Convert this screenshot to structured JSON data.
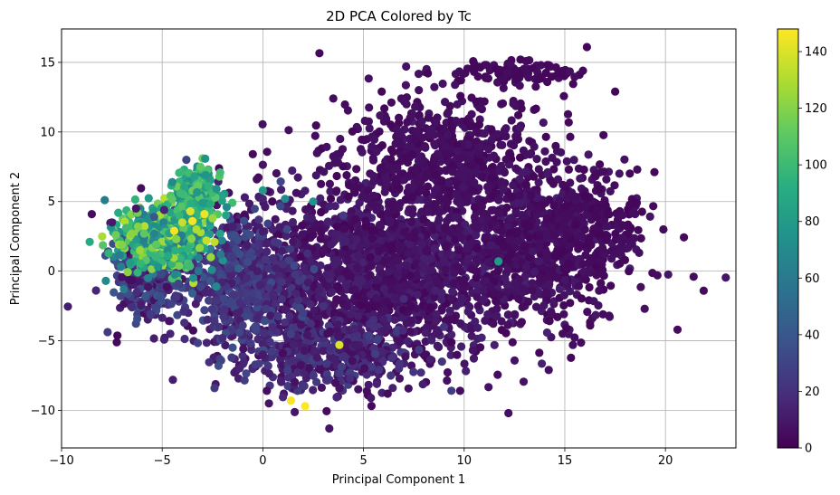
{
  "chart_data": {
    "type": "scatter",
    "title": "2D PCA Colored by Tc",
    "xlabel": "Principal Component 1",
    "ylabel": "Principal Component 2",
    "xlim": [
      -10,
      23.5
    ],
    "ylim": [
      -12.7,
      17.4
    ],
    "xticks": [
      -10,
      -5,
      0,
      5,
      10,
      15,
      20
    ],
    "xtick_labels": [
      "−10",
      "−5",
      "0",
      "5",
      "10",
      "15",
      "20"
    ],
    "yticks": [
      -10,
      -5,
      0,
      5,
      10,
      15
    ],
    "ytick_labels": [
      "−10",
      "−5",
      "0",
      "5",
      "10",
      "15"
    ],
    "grid": true,
    "colormap": "viridis",
    "colorbar": {
      "min": 0,
      "max": 148,
      "ticks": [
        0,
        20,
        40,
        60,
        80,
        100,
        120,
        140
      ],
      "tick_labels": [
        "0",
        "20",
        "40",
        "60",
        "80",
        "100",
        "120",
        "140"
      ]
    },
    "points": [
      {
        "x": -8.5,
        "y": 4.1,
        "tc": 5
      },
      {
        "x": -8.6,
        "y": 2.1,
        "tc": 90
      },
      {
        "x": -7.8,
        "y": -0.7,
        "tc": 70
      },
      {
        "x": -7.5,
        "y": 3.5,
        "tc": 10
      },
      {
        "x": -7.3,
        "y": 2.6,
        "tc": 115
      },
      {
        "x": -7.0,
        "y": 1.9,
        "tc": 120
      },
      {
        "x": -6.8,
        "y": 3.1,
        "tc": 100
      },
      {
        "x": -6.6,
        "y": 0.6,
        "tc": 80
      },
      {
        "x": -6.9,
        "y": -1.3,
        "tc": 60
      },
      {
        "x": -6.5,
        "y": -2.6,
        "tc": 20
      },
      {
        "x": -6.3,
        "y": 4.5,
        "tc": 8
      },
      {
        "x": -6.1,
        "y": 1.5,
        "tc": 125
      },
      {
        "x": -5.9,
        "y": 2.7,
        "tc": 110
      },
      {
        "x": -5.7,
        "y": -0.5,
        "tc": 65
      },
      {
        "x": -5.6,
        "y": -3.1,
        "tc": 25
      },
      {
        "x": -5.4,
        "y": 3.9,
        "tc": 40
      },
      {
        "x": -5.2,
        "y": 0.3,
        "tc": 75
      },
      {
        "x": -5.1,
        "y": -1.8,
        "tc": 35
      },
      {
        "x": -4.9,
        "y": 4.4,
        "tc": 15
      },
      {
        "x": -4.7,
        "y": 1.1,
        "tc": 90
      },
      {
        "x": -4.6,
        "y": -4.5,
        "tc": 15
      },
      {
        "x": -4.5,
        "y": 6.4,
        "tc": 70
      },
      {
        "x": -4.3,
        "y": 2.3,
        "tc": 120
      },
      {
        "x": -4.2,
        "y": -0.9,
        "tc": 30
      },
      {
        "x": -4.1,
        "y": 5.6,
        "tc": 100
      },
      {
        "x": -4.0,
        "y": 3.5,
        "tc": 135
      },
      {
        "x": -3.9,
        "y": -3.7,
        "tc": 20
      },
      {
        "x": -3.8,
        "y": 8.0,
        "tc": 30
      },
      {
        "x": -3.7,
        "y": 1.6,
        "tc": 95
      },
      {
        "x": -3.6,
        "y": 4.3,
        "tc": 140
      },
      {
        "x": -3.5,
        "y": -1.6,
        "tc": 45
      },
      {
        "x": -3.4,
        "y": 6.8,
        "tc": 85
      },
      {
        "x": -3.3,
        "y": 3.0,
        "tc": 130
      },
      {
        "x": -3.2,
        "y": 0.0,
        "tc": 55
      },
      {
        "x": -3.1,
        "y": 7.5,
        "tc": 110
      },
      {
        "x": -3.0,
        "y": 4.9,
        "tc": 80
      },
      {
        "x": -2.9,
        "y": -2.8,
        "tc": 30
      },
      {
        "x": -2.8,
        "y": 2.2,
        "tc": 135
      },
      {
        "x": -2.7,
        "y": 6.1,
        "tc": 95
      },
      {
        "x": -2.6,
        "y": -0.7,
        "tc": 40
      },
      {
        "x": -2.5,
        "y": 3.8,
        "tc": 125
      },
      {
        "x": -2.4,
        "y": -8.4,
        "tc": 25
      },
      {
        "x": -2.3,
        "y": 5.9,
        "tc": 75
      },
      {
        "x": -2.1,
        "y": 1.2,
        "tc": 60
      },
      {
        "x": -2.0,
        "y": -4.8,
        "tc": 18
      },
      {
        "x": -1.8,
        "y": 4.6,
        "tc": 70
      },
      {
        "x": -1.6,
        "y": -2.2,
        "tc": 30
      },
      {
        "x": -1.4,
        "y": 2.6,
        "tc": 35
      },
      {
        "x": -1.2,
        "y": 0.2,
        "tc": 45
      },
      {
        "x": -3.5,
        "y": 3.6,
        "tc": 146
      },
      {
        "x": -4.4,
        "y": 2.9,
        "tc": 145
      },
      {
        "x": -2.9,
        "y": 4.1,
        "tc": 144
      },
      {
        "x": -6.2,
        "y": 3.2,
        "tc": 120
      },
      {
        "x": -5.3,
        "y": 1.9,
        "tc": 110
      },
      {
        "x": -1.0,
        "y": -3.9,
        "tc": 25
      },
      {
        "x": -0.9,
        "y": 5.3,
        "tc": 12
      },
      {
        "x": -0.5,
        "y": 8.4,
        "tc": 4
      },
      {
        "x": -0.3,
        "y": 6.6,
        "tc": 6
      },
      {
        "x": 0.0,
        "y": 5.8,
        "tc": 80
      },
      {
        "x": -0.2,
        "y": 3.7,
        "tc": 20
      },
      {
        "x": 0.2,
        "y": 1.4,
        "tc": 15
      },
      {
        "x": 0.3,
        "y": -1.2,
        "tc": 22
      },
      {
        "x": 0.0,
        "y": -6.0,
        "tc": 10
      },
      {
        "x": 0.2,
        "y": -8.6,
        "tc": 6
      },
      {
        "x": 0.3,
        "y": -9.5,
        "tc": 8
      },
      {
        "x": 1.1,
        "y": 5.2,
        "tc": 70
      },
      {
        "x": 1.5,
        "y": 2.1,
        "tc": 8
      },
      {
        "x": 1.8,
        "y": -0.7,
        "tc": 25
      },
      {
        "x": 1.4,
        "y": -9.3,
        "tc": 146
      },
      {
        "x": 2.1,
        "y": -9.7,
        "tc": 148
      },
      {
        "x": 2.5,
        "y": 5.0,
        "tc": 75
      },
      {
        "x": 2.8,
        "y": -1.4,
        "tc": 12
      },
      {
        "x": 2.7,
        "y": -6.2,
        "tc": 10
      },
      {
        "x": 3.3,
        "y": -11.3,
        "tc": 8
      },
      {
        "x": 3.8,
        "y": -5.3,
        "tc": 140
      },
      {
        "x": 3.5,
        "y": 12.4,
        "tc": 4
      },
      {
        "x": 11.7,
        "y": 0.7,
        "tc": 80
      },
      {
        "x": 12.2,
        "y": -10.2,
        "tc": 6
      },
      {
        "x": 16.1,
        "y": 16.1,
        "tc": 3
      },
      {
        "x": 17.5,
        "y": 12.9,
        "tc": 3
      },
      {
        "x": 21.4,
        "y": -0.4,
        "tc": 4
      },
      {
        "x": 21.9,
        "y": -1.4,
        "tc": 4
      },
      {
        "x": 20.6,
        "y": -4.2,
        "tc": 4
      },
      {
        "x": 19.9,
        "y": 3.0,
        "tc": 4
      },
      {
        "x": 19.6,
        "y": -0.3,
        "tc": 4
      },
      {
        "x": 18.6,
        "y": 7.3,
        "tc": 4
      },
      {
        "x": 12.8,
        "y": 15.2,
        "tc": 3
      },
      {
        "x": 10.5,
        "y": 14.9,
        "tc": 3
      },
      {
        "x": 14.7,
        "y": 14.2,
        "tc": 3
      },
      {
        "x": 17.8,
        "y": 2.2,
        "tc": 5
      },
      {
        "x": 17.2,
        "y": -3.2,
        "tc": 5
      },
      {
        "x": 16.7,
        "y": -1.4,
        "tc": 5
      },
      {
        "x": 15.4,
        "y": -5.3,
        "tc": 5
      },
      {
        "x": 14.2,
        "y": -7.1,
        "tc": 5
      },
      {
        "x": 9.8,
        "y": -8.6,
        "tc": 5
      },
      {
        "x": 6.2,
        "y": -8.8,
        "tc": 5
      },
      {
        "x": 4.0,
        "y": 4.0,
        "tc": 25
      },
      {
        "x": 5.5,
        "y": -3.5,
        "tc": 20
      },
      {
        "x": 7.0,
        "y": -2.0,
        "tc": 18
      },
      {
        "x": 9.0,
        "y": -4.0,
        "tc": 22
      },
      {
        "x": 2.0,
        "y": -3.0,
        "tc": 28
      },
      {
        "x": 1.0,
        "y": 0.5,
        "tc": 20
      }
    ]
  }
}
